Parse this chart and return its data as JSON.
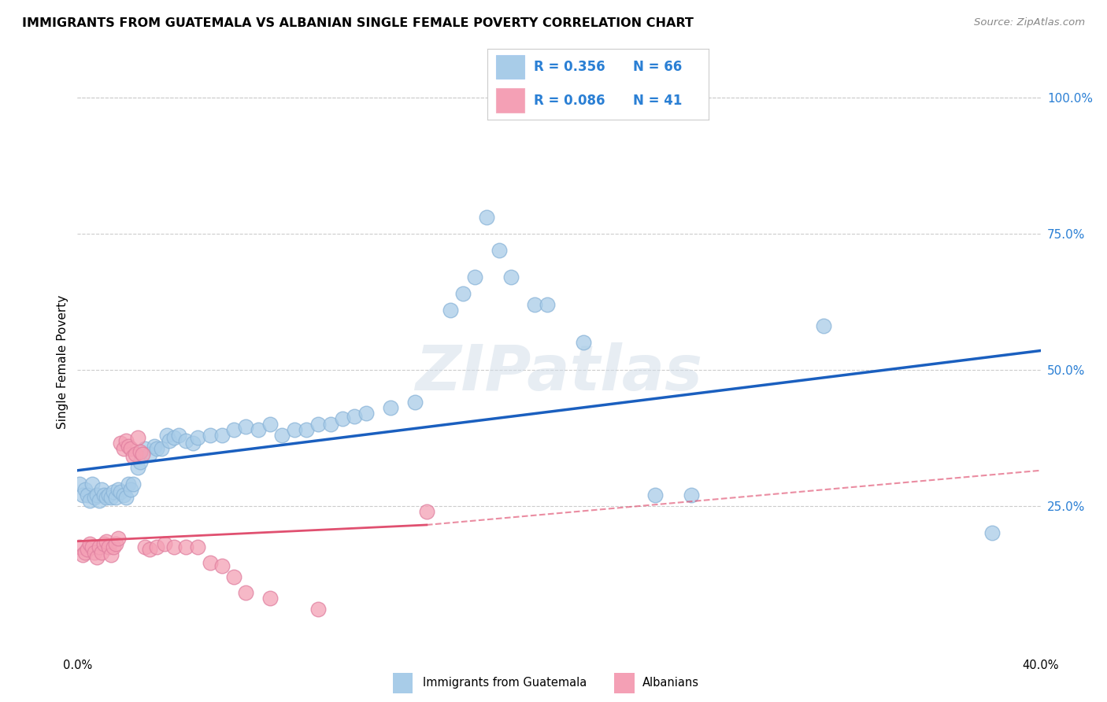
{
  "title": "IMMIGRANTS FROM GUATEMALA VS ALBANIAN SINGLE FEMALE POVERTY CORRELATION CHART",
  "source": "Source: ZipAtlas.com",
  "ylabel": "Single Female Poverty",
  "xlim": [
    0.0,
    0.4
  ],
  "ylim": [
    -0.02,
    1.05
  ],
  "color_blue": "#a8cce8",
  "color_pink": "#f4a0b5",
  "line_blue": "#1a5fbf",
  "line_pink": "#e05070",
  "watermark": "ZIPatlas",
  "blue_points": [
    [
      0.001,
      0.29
    ],
    [
      0.002,
      0.27
    ],
    [
      0.003,
      0.28
    ],
    [
      0.004,
      0.27
    ],
    [
      0.005,
      0.26
    ],
    [
      0.006,
      0.29
    ],
    [
      0.007,
      0.265
    ],
    [
      0.008,
      0.27
    ],
    [
      0.009,
      0.26
    ],
    [
      0.01,
      0.28
    ],
    [
      0.011,
      0.27
    ],
    [
      0.012,
      0.265
    ],
    [
      0.013,
      0.27
    ],
    [
      0.014,
      0.265
    ],
    [
      0.015,
      0.275
    ],
    [
      0.016,
      0.265
    ],
    [
      0.017,
      0.28
    ],
    [
      0.018,
      0.275
    ],
    [
      0.019,
      0.27
    ],
    [
      0.02,
      0.265
    ],
    [
      0.021,
      0.29
    ],
    [
      0.022,
      0.28
    ],
    [
      0.023,
      0.29
    ],
    [
      0.025,
      0.32
    ],
    [
      0.026,
      0.33
    ],
    [
      0.028,
      0.355
    ],
    [
      0.03,
      0.345
    ],
    [
      0.032,
      0.36
    ],
    [
      0.033,
      0.355
    ],
    [
      0.035,
      0.355
    ],
    [
      0.037,
      0.38
    ],
    [
      0.038,
      0.37
    ],
    [
      0.04,
      0.375
    ],
    [
      0.042,
      0.38
    ],
    [
      0.045,
      0.37
    ],
    [
      0.048,
      0.365
    ],
    [
      0.05,
      0.375
    ],
    [
      0.055,
      0.38
    ],
    [
      0.06,
      0.38
    ],
    [
      0.065,
      0.39
    ],
    [
      0.07,
      0.395
    ],
    [
      0.075,
      0.39
    ],
    [
      0.08,
      0.4
    ],
    [
      0.085,
      0.38
    ],
    [
      0.09,
      0.39
    ],
    [
      0.095,
      0.39
    ],
    [
      0.1,
      0.4
    ],
    [
      0.105,
      0.4
    ],
    [
      0.11,
      0.41
    ],
    [
      0.115,
      0.415
    ],
    [
      0.12,
      0.42
    ],
    [
      0.13,
      0.43
    ],
    [
      0.14,
      0.44
    ],
    [
      0.155,
      0.61
    ],
    [
      0.16,
      0.64
    ],
    [
      0.165,
      0.67
    ],
    [
      0.17,
      0.78
    ],
    [
      0.175,
      0.72
    ],
    [
      0.18,
      0.67
    ],
    [
      0.19,
      0.62
    ],
    [
      0.195,
      0.62
    ],
    [
      0.21,
      0.55
    ],
    [
      0.24,
      0.27
    ],
    [
      0.255,
      0.27
    ],
    [
      0.31,
      0.58
    ],
    [
      0.38,
      0.2
    ]
  ],
  "pink_points": [
    [
      0.001,
      0.175
    ],
    [
      0.002,
      0.16
    ],
    [
      0.003,
      0.165
    ],
    [
      0.004,
      0.17
    ],
    [
      0.005,
      0.18
    ],
    [
      0.006,
      0.175
    ],
    [
      0.007,
      0.165
    ],
    [
      0.008,
      0.155
    ],
    [
      0.009,
      0.175
    ],
    [
      0.01,
      0.165
    ],
    [
      0.011,
      0.18
    ],
    [
      0.012,
      0.185
    ],
    [
      0.013,
      0.175
    ],
    [
      0.014,
      0.16
    ],
    [
      0.015,
      0.175
    ],
    [
      0.016,
      0.18
    ],
    [
      0.017,
      0.19
    ],
    [
      0.018,
      0.365
    ],
    [
      0.019,
      0.355
    ],
    [
      0.02,
      0.37
    ],
    [
      0.021,
      0.36
    ],
    [
      0.022,
      0.355
    ],
    [
      0.023,
      0.34
    ],
    [
      0.024,
      0.345
    ],
    [
      0.025,
      0.375
    ],
    [
      0.026,
      0.35
    ],
    [
      0.027,
      0.345
    ],
    [
      0.028,
      0.175
    ],
    [
      0.03,
      0.17
    ],
    [
      0.033,
      0.175
    ],
    [
      0.036,
      0.18
    ],
    [
      0.04,
      0.175
    ],
    [
      0.045,
      0.175
    ],
    [
      0.05,
      0.175
    ],
    [
      0.055,
      0.145
    ],
    [
      0.06,
      0.14
    ],
    [
      0.065,
      0.12
    ],
    [
      0.07,
      0.09
    ],
    [
      0.08,
      0.08
    ],
    [
      0.1,
      0.06
    ],
    [
      0.145,
      0.24
    ]
  ],
  "blue_line": [
    [
      0.0,
      0.315
    ],
    [
      0.4,
      0.535
    ]
  ],
  "pink_line_solid": [
    [
      0.0,
      0.185
    ],
    [
      0.145,
      0.215
    ]
  ],
  "pink_line_dashed": [
    [
      0.145,
      0.215
    ],
    [
      0.4,
      0.315
    ]
  ]
}
